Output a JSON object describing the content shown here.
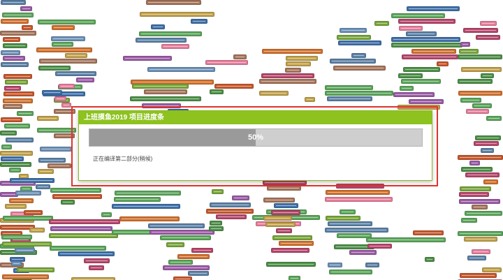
{
  "dialog": {
    "title": "上班摸鱼2019 项目进度条",
    "status": "正在编译第二部分(稍候)"
  },
  "progress": {
    "value": 0.5,
    "label": "50%"
  },
  "colors": {
    "header": "#8dc21f",
    "highlight": "#e0322e",
    "bar_track": "#cfcfcf",
    "bar_fill": "#9a9a9a"
  }
}
